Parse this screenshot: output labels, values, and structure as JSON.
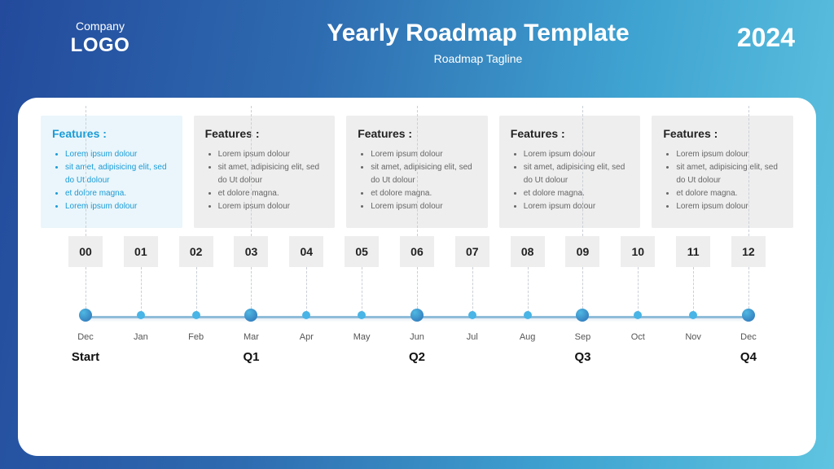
{
  "header": {
    "logo_top": "Company",
    "logo_bottom": "LOGO",
    "title": "Yearly Roadmap Template",
    "tagline": "Roadmap Tagline",
    "year": "2024"
  },
  "colors": {
    "card_accent_bg": "#eaf6fb",
    "card_default_bg": "#eeeeee",
    "accent_text": "#1a9bd7",
    "body_text": "#444444",
    "major_dot_fill": "#2b8fd0",
    "major_dot_grad_a": "#2b6fb5",
    "major_dot_grad_b": "#4fb8e2",
    "minor_dot_fill": "#49b4e6",
    "panel_bg": "#ffffff",
    "numbox_bg": "#eeeeee"
  },
  "cards": [
    {
      "title": "Features :",
      "title_color": "#1a9bd7",
      "bg": "#eaf6fb",
      "bullet_color": "#1a9bd7",
      "text_color": "#1a9bd7",
      "connector_to_index": 0,
      "items": [
        "Lorem ipsum dolour",
        "sit amet, adipisicing elit, sed do Ut dolour",
        "et dolore magna.",
        "Lorem ipsum dolour"
      ]
    },
    {
      "title": "Features :",
      "title_color": "#222222",
      "bg": "#eeeeee",
      "bullet_color": "#666666",
      "text_color": "#666666",
      "connector_to_index": 3,
      "items": [
        "Lorem ipsum dolour",
        "sit amet, adipisicing elit, sed do Ut dolour",
        "et dolore magna.",
        "Lorem ipsum dolour"
      ]
    },
    {
      "title": "Features :",
      "title_color": "#222222",
      "bg": "#eeeeee",
      "bullet_color": "#666666",
      "text_color": "#666666",
      "connector_to_index": 6,
      "items": [
        "Lorem ipsum dolour",
        "sit amet, adipisicing elit, sed do Ut dolour",
        "et dolore magna.",
        "Lorem ipsum dolour"
      ]
    },
    {
      "title": "Features :",
      "title_color": "#222222",
      "bg": "#eeeeee",
      "bullet_color": "#666666",
      "text_color": "#666666",
      "connector_to_index": 9,
      "items": [
        "Lorem ipsum dolour",
        "sit amet, adipisicing elit, sed do Ut dolour",
        "et dolore magna.",
        "Lorem ipsum dolour"
      ]
    },
    {
      "title": "Features :",
      "title_color": "#222222",
      "bg": "#eeeeee",
      "bullet_color": "#666666",
      "text_color": "#666666",
      "connector_to_index": 12,
      "items": [
        "Lorem ipsum dolour",
        "sit amet, adipisicing elit, sed do Ut dolour",
        "et dolore magna.",
        "Lorem ipsum dolour"
      ]
    }
  ],
  "timeline": {
    "numbers": [
      "00",
      "01",
      "02",
      "03",
      "04",
      "05",
      "06",
      "07",
      "08",
      "09",
      "10",
      "11",
      "12"
    ],
    "months": [
      "Dec",
      "Jan",
      "Feb",
      "Mar",
      "Apr",
      "May",
      "Jun",
      "Jul",
      "Aug",
      "Sep",
      "Oct",
      "Nov",
      "Dec"
    ],
    "major_indices": [
      0,
      3,
      6,
      9,
      12
    ],
    "quarters": {
      "0": "Start",
      "3": "Q1",
      "6": "Q2",
      "9": "Q3",
      "12": "Q4"
    }
  }
}
